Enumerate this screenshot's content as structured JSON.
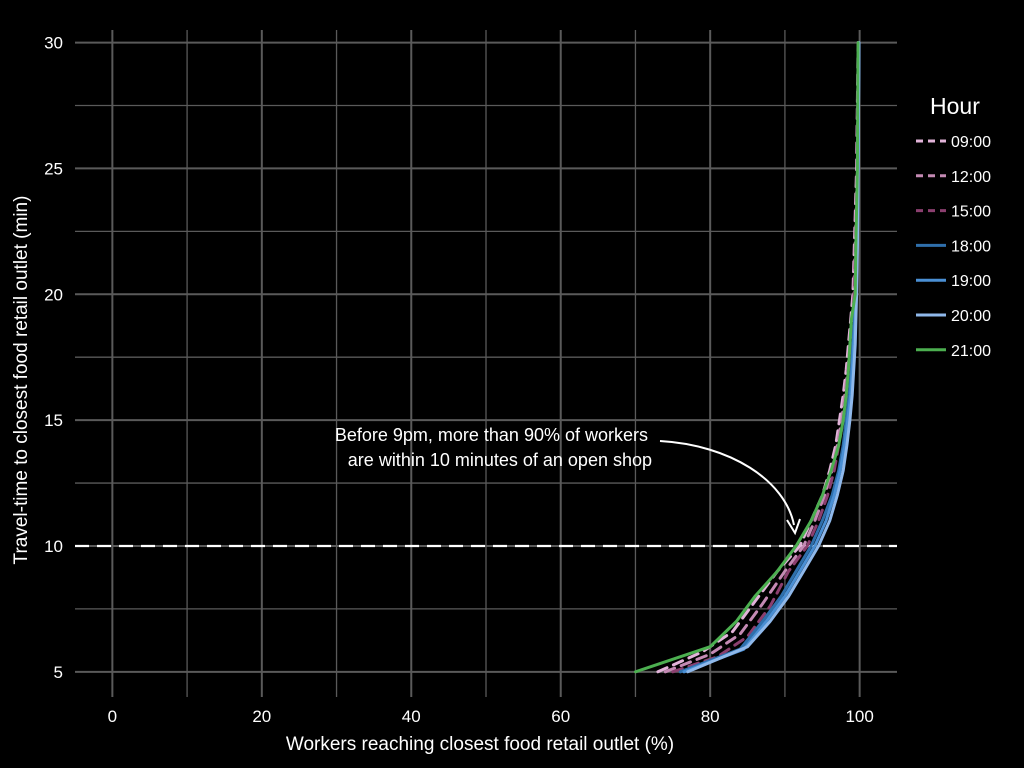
{
  "chart_data": {
    "type": "line",
    "xlabel": "Workers reaching closest food retail outlet (%)",
    "ylabel": "Travel-time to closest food retail outlet (min)",
    "xlim": [
      -5,
      105
    ],
    "ylim": [
      4,
      30.5
    ],
    "x_ticks": [
      "0",
      "20",
      "40",
      "60",
      "80",
      "100"
    ],
    "x_tick_values": [
      0,
      20,
      40,
      60,
      80,
      100
    ],
    "y_ticks": [
      "5",
      "10",
      "15",
      "20",
      "25",
      "30"
    ],
    "y_tick_values": [
      5,
      10,
      15,
      20,
      25,
      30
    ],
    "grid": true,
    "legend_title": "Hour",
    "legend_position": "right",
    "reference_line": {
      "y": 10,
      "style": "dashed",
      "color": "#ffffff"
    },
    "annotation": {
      "lines": [
        "Before 9pm, more than 90% of workers",
        "are within 10 minutes of an open shop"
      ],
      "arrow_target": {
        "x": 91.5,
        "y": 10
      }
    },
    "series": [
      {
        "name": "09:00",
        "color": "#e2b3d9",
        "dash": true,
        "points": [
          [
            73,
            5
          ],
          [
            79,
            5.8
          ],
          [
            83,
            6.6
          ],
          [
            86,
            7.8
          ],
          [
            89,
            9
          ],
          [
            92,
            10
          ],
          [
            93.5,
            11
          ],
          [
            95,
            12
          ],
          [
            96,
            13
          ],
          [
            96.8,
            14
          ],
          [
            97.3,
            15
          ],
          [
            97.8,
            16
          ],
          [
            98.2,
            17
          ],
          [
            98.5,
            18
          ],
          [
            98.8,
            19
          ],
          [
            99.1,
            20
          ],
          [
            99.3,
            22
          ],
          [
            99.6,
            25
          ],
          [
            99.8,
            30
          ]
        ]
      },
      {
        "name": "12:00",
        "color": "#c48ab4",
        "dash": true,
        "points": [
          [
            74,
            5
          ],
          [
            80,
            5.7
          ],
          [
            84,
            6.5
          ],
          [
            87,
            7.7
          ],
          [
            90,
            9
          ],
          [
            92.5,
            10
          ],
          [
            94,
            11
          ],
          [
            95.3,
            12
          ],
          [
            96.3,
            13
          ],
          [
            97,
            14
          ],
          [
            97.6,
            15
          ],
          [
            98,
            16
          ],
          [
            98.4,
            17
          ],
          [
            98.7,
            18
          ],
          [
            99,
            19
          ],
          [
            99.2,
            20
          ],
          [
            99.4,
            22
          ],
          [
            99.7,
            25
          ],
          [
            99.8,
            30
          ]
        ]
      },
      {
        "name": "15:00",
        "color": "#8b3f6f",
        "dash": true,
        "points": [
          [
            75,
            5
          ],
          [
            81,
            5.6
          ],
          [
            85,
            6.4
          ],
          [
            88,
            7.6
          ],
          [
            90.5,
            9
          ],
          [
            93,
            10
          ],
          [
            94.5,
            11
          ],
          [
            95.7,
            12
          ],
          [
            96.6,
            13
          ],
          [
            97.2,
            14
          ],
          [
            97.8,
            15
          ],
          [
            98.2,
            16
          ],
          [
            98.5,
            17
          ],
          [
            98.8,
            18
          ],
          [
            99,
            19
          ],
          [
            99.3,
            20
          ],
          [
            99.5,
            22
          ],
          [
            99.7,
            25
          ],
          [
            99.8,
            30
          ]
        ]
      },
      {
        "name": "18:00",
        "color": "#2f6fab",
        "dash": false,
        "points": [
          [
            76,
            5
          ],
          [
            84,
            5.9
          ],
          [
            87,
            7
          ],
          [
            89.5,
            8
          ],
          [
            91.5,
            9
          ],
          [
            93.5,
            10
          ],
          [
            95,
            11
          ],
          [
            96.3,
            12
          ],
          [
            97.2,
            13
          ],
          [
            97.8,
            14
          ],
          [
            98.2,
            15
          ],
          [
            98.6,
            16
          ],
          [
            98.9,
            17
          ],
          [
            99.1,
            18
          ],
          [
            99.3,
            19
          ],
          [
            99.5,
            20
          ],
          [
            99.6,
            22
          ],
          [
            99.8,
            25
          ],
          [
            99.9,
            30
          ]
        ]
      },
      {
        "name": "19:00",
        "color": "#4a8fd4",
        "dash": false,
        "points": [
          [
            76.5,
            5
          ],
          [
            84.5,
            5.9
          ],
          [
            87.5,
            7
          ],
          [
            90,
            8
          ],
          [
            92,
            9
          ],
          [
            94,
            10
          ],
          [
            95.5,
            11
          ],
          [
            96.6,
            12
          ],
          [
            97.4,
            13
          ],
          [
            98,
            14
          ],
          [
            98.4,
            15
          ],
          [
            98.8,
            16
          ],
          [
            99,
            17
          ],
          [
            99.2,
            18
          ],
          [
            99.4,
            19
          ],
          [
            99.5,
            20
          ],
          [
            99.7,
            22
          ],
          [
            99.8,
            25
          ],
          [
            99.9,
            30
          ]
        ]
      },
      {
        "name": "20:00",
        "color": "#8fb8ea",
        "dash": false,
        "points": [
          [
            77,
            5
          ],
          [
            85,
            6
          ],
          [
            88,
            7
          ],
          [
            90.5,
            8
          ],
          [
            92.5,
            9
          ],
          [
            94.5,
            10
          ],
          [
            96,
            11
          ],
          [
            97,
            12
          ],
          [
            97.8,
            13
          ],
          [
            98.3,
            14
          ],
          [
            98.7,
            15
          ],
          [
            99,
            16
          ],
          [
            99.2,
            17
          ],
          [
            99.4,
            18
          ],
          [
            99.5,
            19
          ],
          [
            99.6,
            20
          ],
          [
            99.7,
            22
          ],
          [
            99.8,
            25
          ],
          [
            99.9,
            30
          ]
        ]
      },
      {
        "name": "21:00",
        "color": "#4caf50",
        "dash": false,
        "points": [
          [
            70,
            5
          ],
          [
            80,
            6
          ],
          [
            83.5,
            7
          ],
          [
            86,
            8
          ],
          [
            89,
            9
          ],
          [
            91.5,
            10
          ],
          [
            93.5,
            11
          ],
          [
            95,
            12
          ],
          [
            96.2,
            13
          ],
          [
            97.2,
            14
          ],
          [
            97.8,
            15
          ],
          [
            98.2,
            16
          ],
          [
            98.5,
            17
          ],
          [
            98.7,
            18
          ],
          [
            98.9,
            19
          ],
          [
            99.4,
            20
          ],
          [
            99.5,
            22
          ],
          [
            99.7,
            25
          ],
          [
            99.8,
            30
          ]
        ]
      }
    ]
  }
}
